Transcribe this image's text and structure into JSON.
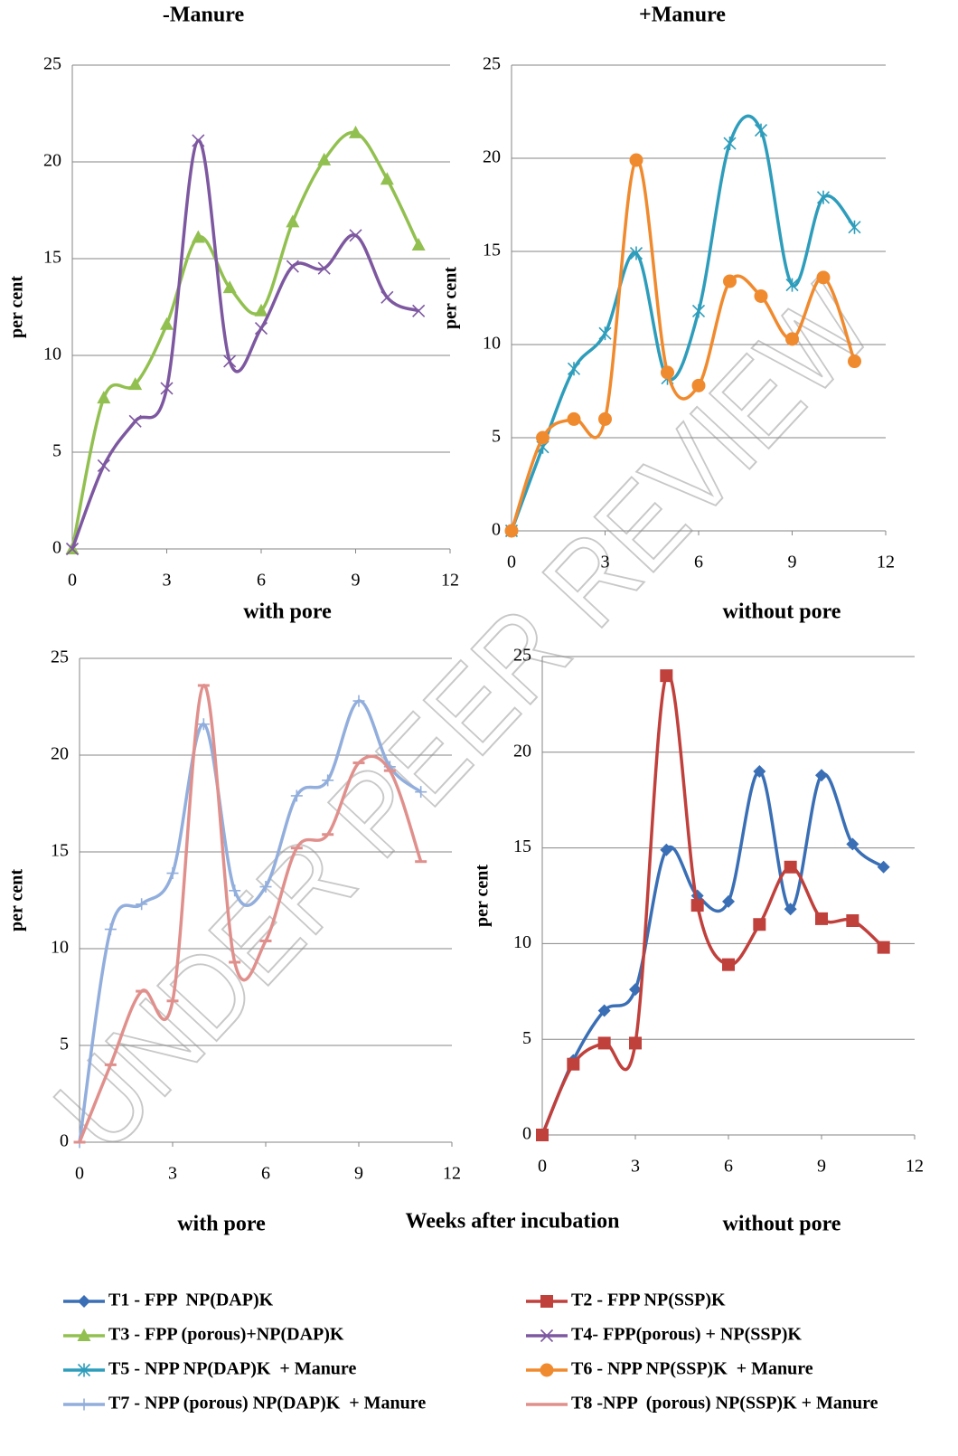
{
  "shared_xlabel": "Weeks after incubation",
  "watermark": "UNDER PEER REVIEW",
  "chart_data": [
    {
      "type": "line",
      "title": "-Manure",
      "xlabel": "with pore",
      "ylabel": "per cent",
      "x": [
        0,
        1,
        2,
        3,
        4,
        5,
        6,
        7,
        8,
        9,
        10,
        11
      ],
      "xlim": [
        0,
        12
      ],
      "xticks": [
        0,
        3,
        6,
        9,
        12
      ],
      "ylim": [
        0,
        25
      ],
      "yticks": [
        0,
        5,
        10,
        15,
        20,
        25
      ],
      "grid": true,
      "smooth": true,
      "series": [
        {
          "name": "T3 - FPP (porous)+NP(DAP)K",
          "color": "#92c050",
          "marker": "triangle",
          "values": [
            0,
            7.8,
            8.5,
            11.6,
            16.1,
            13.5,
            12.3,
            16.9,
            20.1,
            21.5,
            19.1,
            15.7
          ]
        },
        {
          "name": "T4- FPP(porous) + NP(SSP)K",
          "color": "#7d58a0",
          "marker": "x",
          "values": [
            0,
            4.3,
            6.6,
            8.3,
            21.1,
            9.7,
            11.4,
            14.6,
            14.5,
            16.2,
            13.0,
            12.3
          ]
        }
      ]
    },
    {
      "type": "line",
      "title": "+Manure",
      "xlabel": "without pore",
      "ylabel": "per cent",
      "x": [
        0,
        1,
        2,
        3,
        4,
        5,
        6,
        7,
        8,
        9,
        10,
        11
      ],
      "xlim": [
        0,
        12
      ],
      "xticks": [
        0,
        3,
        6,
        9,
        12
      ],
      "ylim": [
        0,
        25
      ],
      "yticks": [
        0,
        5,
        10,
        15,
        20,
        25
      ],
      "grid": true,
      "smooth": true,
      "series": [
        {
          "name": "T5 - NPP NP(DAP)K  + Manure",
          "color": "#2e9dbb",
          "marker": "asterisk",
          "values": [
            0,
            4.5,
            8.7,
            10.6,
            14.9,
            8.2,
            11.8,
            20.8,
            21.5,
            13.2,
            17.9,
            16.3
          ]
        },
        {
          "name": "T6 - NPP NP(SSP)K  + Manure",
          "color": "#f08a2e",
          "marker": "circle",
          "values": [
            0,
            5.0,
            6.0,
            6.0,
            19.9,
            8.5,
            7.8,
            13.4,
            12.6,
            10.3,
            13.6,
            9.1
          ]
        }
      ]
    },
    {
      "type": "line",
      "xlabel": "with pore",
      "ylabel": "per cent",
      "x": [
        0,
        1,
        2,
        3,
        4,
        5,
        6,
        7,
        8,
        9,
        10,
        11
      ],
      "xlim": [
        0,
        12
      ],
      "xticks": [
        0,
        3,
        6,
        9,
        12
      ],
      "ylim": [
        0,
        25
      ],
      "yticks": [
        0,
        5,
        10,
        15,
        20,
        25
      ],
      "grid": true,
      "smooth": true,
      "series": [
        {
          "name": "T7 - NPP (porous) NP(DAP)K  + Manure",
          "color": "#92aedc",
          "marker": "plus",
          "values": [
            0,
            11.0,
            12.3,
            13.9,
            21.6,
            13.0,
            13.2,
            17.9,
            18.7,
            22.8,
            19.4,
            18.1
          ]
        },
        {
          "name": "T8 -NPP  (porous) NP(SSP)K + Manure",
          "color": "#e0908c",
          "marker": "dash",
          "values": [
            0,
            4.0,
            7.8,
            7.3,
            23.6,
            9.3,
            10.4,
            15.2,
            15.9,
            19.6,
            19.2,
            14.5
          ]
        }
      ]
    },
    {
      "type": "line",
      "xlabel": "without pore",
      "ylabel": "per cent",
      "x": [
        0,
        1,
        2,
        3,
        4,
        5,
        6,
        7,
        8,
        9,
        10,
        11
      ],
      "xlim": [
        0,
        12
      ],
      "xticks": [
        0,
        3,
        6,
        9,
        12
      ],
      "ylim": [
        0,
        25
      ],
      "yticks": [
        0,
        5,
        10,
        15,
        20,
        25
      ],
      "grid": true,
      "smooth": true,
      "series": [
        {
          "name": "T1 - FPP  NP(DAP)K",
          "color": "#3a6fb5",
          "marker": "diamond",
          "values": [
            0,
            3.9,
            6.5,
            7.6,
            14.9,
            12.5,
            12.2,
            19.0,
            11.8,
            18.8,
            15.2,
            14.0
          ]
        },
        {
          "name": "T2 - FPP NP(SSP)K",
          "color": "#c0403c",
          "marker": "square",
          "values": [
            0,
            3.7,
            4.8,
            4.8,
            24.0,
            12.0,
            8.9,
            11.0,
            14.0,
            11.3,
            11.2,
            9.8
          ]
        }
      ]
    }
  ]
}
